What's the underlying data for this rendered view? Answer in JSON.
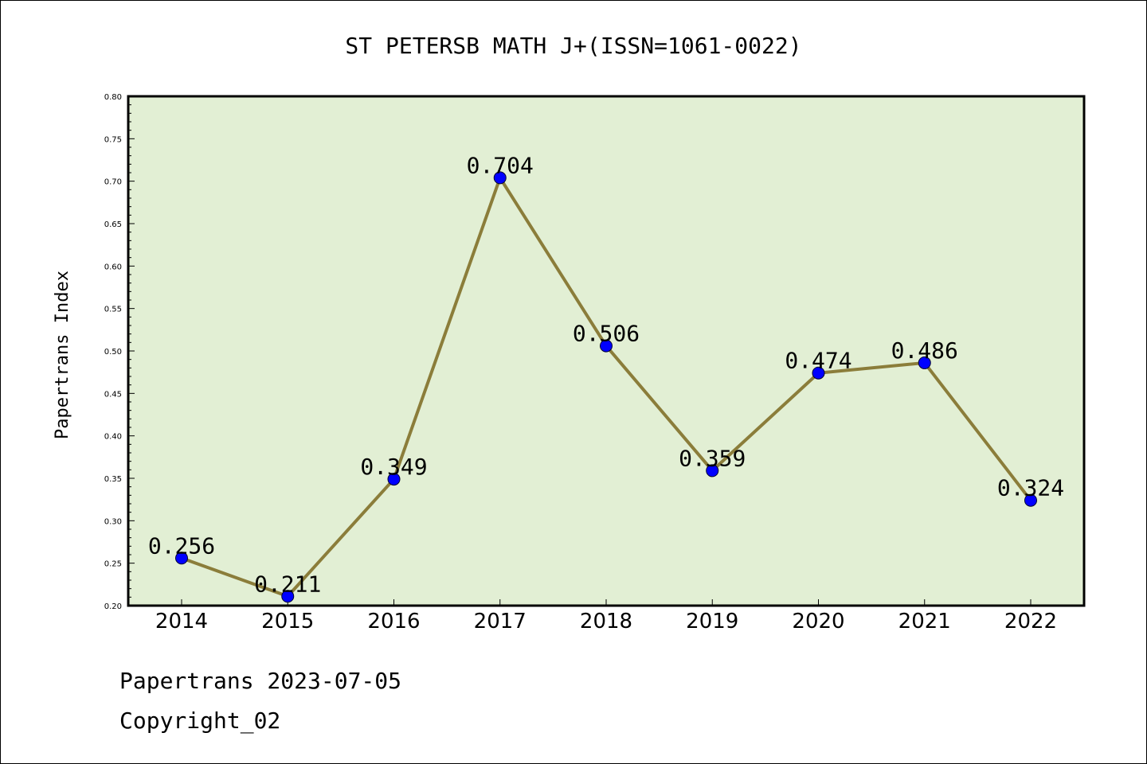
{
  "chart_data": {
    "type": "line",
    "title": "ST PETERSB MATH J+(ISSN=1061-0022)",
    "xlabel": "",
    "ylabel": "Papertrans Index",
    "categories": [
      "2014",
      "2015",
      "2016",
      "2017",
      "2018",
      "2019",
      "2020",
      "2021",
      "2022"
    ],
    "values": [
      0.256,
      0.211,
      0.349,
      0.704,
      0.506,
      0.359,
      0.474,
      0.486,
      0.324
    ],
    "value_labels": [
      "0.256",
      "0.211",
      "0.349",
      "0.704",
      "0.506",
      "0.359",
      "0.474",
      "0.486",
      "0.324"
    ],
    "ylim": [
      0.2,
      0.8
    ],
    "yticks": [
      0.2,
      0.25,
      0.3,
      0.35,
      0.4,
      0.45,
      0.5,
      0.55,
      0.6,
      0.65,
      0.7,
      0.75,
      0.8
    ],
    "ytick_labels": [
      "0.20",
      "0.25",
      "0.30",
      "0.35",
      "0.40",
      "0.45",
      "0.50",
      "0.55",
      "0.60",
      "0.65",
      "0.70",
      "0.75",
      "0.80"
    ],
    "grid": false,
    "legend": "none"
  },
  "footer": {
    "line1": "Papertrans 2023-07-05",
    "line2": "Copyright_02"
  },
  "colors": {
    "plot_background": "#e2efd4",
    "line": "#8b7d3a",
    "marker": "#0000ff",
    "axis": "#000000"
  }
}
